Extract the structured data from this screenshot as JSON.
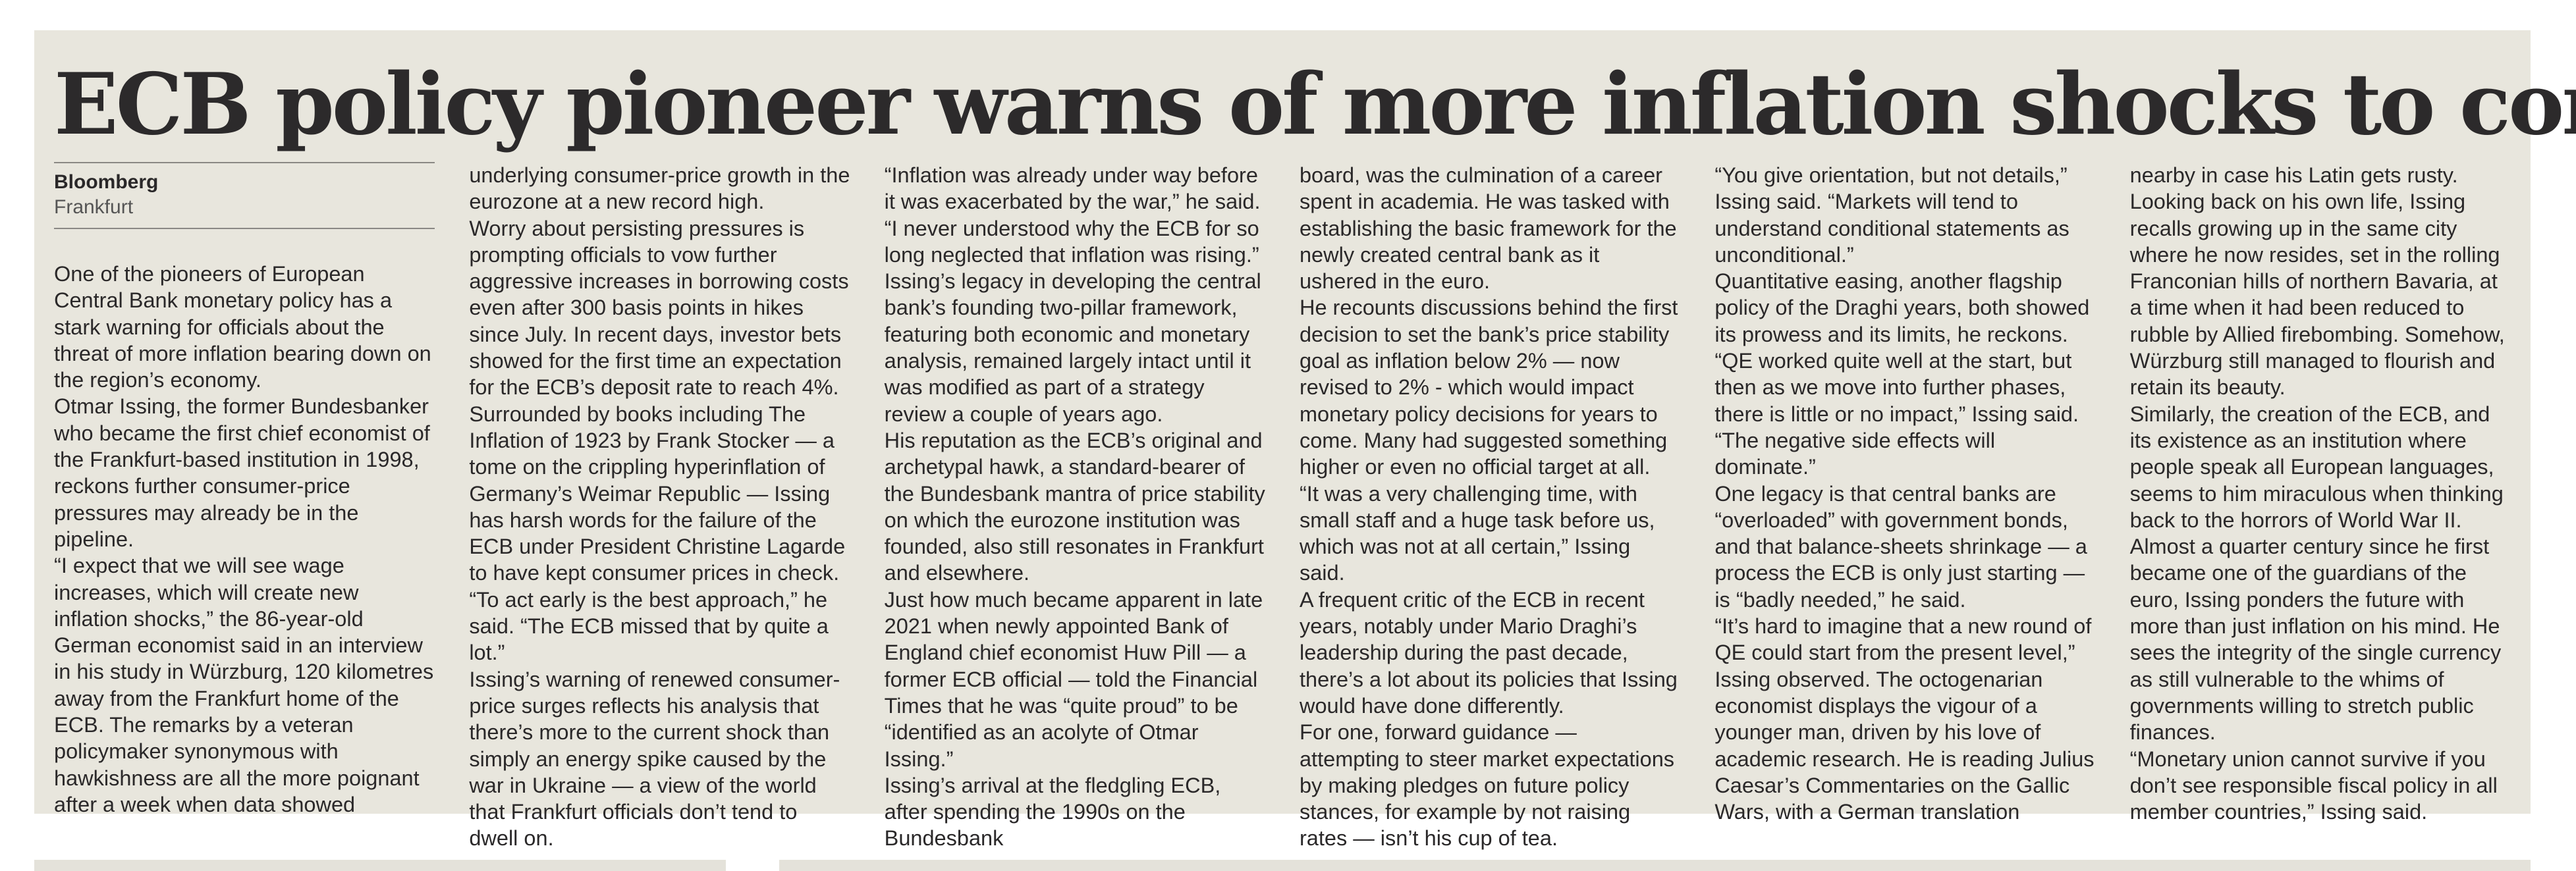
{
  "article": {
    "headline": "ECB policy pioneer warns of more inflation shocks to come",
    "source": "Bloomberg",
    "dateline": "Frankfurt",
    "columns": [
      [
        "One of the pioneers of European Central Bank monetary policy has a stark warning for officials about the threat of more inflation bearing down on the region’s economy.",
        "Otmar Issing, the former Bundesbanker who became the first chief economist of the Frankfurt-based institution in 1998, reckons further consumer-price pressures may already be in the pipeline.",
        "“I expect that we will see wage increases, which will create new inflation shocks,” the 86-year-old German economist said in an interview in his study in Würzburg, 120 kilometres away from the Frankfurt home of the ECB. The remarks by a veteran policymaker synonymous with hawkishness are all the more poignant after a week when data showed"
      ],
      [
        "underlying consumer-price growth in the eurozone at a new record high.",
        "Worry about persisting pressures is prompting officials to vow further aggressive increases in borrowing costs even after 300 basis points in hikes since July. In recent days, investor bets showed for the first time an expectation for the ECB’s deposit rate to reach 4%.",
        "Surrounded by books including The Inflation of 1923 by Frank Stocker — a tome on the crippling hyperinflation of Germany’s Weimar Republic — Issing has harsh words for the failure of the ECB under President Christine Lagarde to have kept consumer prices in check.",
        "“To act early is the best approach,” he said. “The ECB missed that by quite a lot.”",
        "Issing’s warning of renewed consumer-price surges reflects his analysis that there’s more to the current shock than simply an energy spike caused by the war in Ukraine — a view of the world that Frankfurt officials don’t tend to dwell on."
      ],
      [
        "“Inflation was already under way before it was exacerbated by the war,” he said. “I never understood why the ECB for so long neglected that inflation was rising.”",
        "Issing’s legacy in developing the central bank’s founding two-pillar framework, featuring both economic and monetary analysis, remained largely intact until it was modified as part of a strategy review a couple of years ago.",
        "His reputation as the ECB’s original and archetypal hawk, a standard-bearer of the Bundesbank mantra of price stability on which the eurozone institution was founded, also still resonates in Frankfurt and elsewhere.",
        "Just how much became apparent in late 2021 when newly appointed Bank of England chief economist Huw Pill — a former ECB official — told the Financial Times that he was “quite proud” to be “identified as an acolyte of Otmar Issing.”",
        "Issing’s arrival at the fledgling ECB, after spending the 1990s on the Bundesbank"
      ],
      [
        "board, was the culmination of a career spent in academia. He was tasked with establishing the basic framework for the newly created central bank as it ushered in the euro.",
        "He recounts discussions behind the first decision to set the bank’s price stability goal as inflation below 2% — now revised to 2% - which would impact monetary policy decisions for years to come. Many had suggested something higher or even no official target at all.",
        "“It was a very challenging time, with small staff and a huge task before us, which was not at all certain,” Issing said.",
        "A frequent critic of the ECB in recent years, notably under Mario Draghi’s leadership during the past decade, there’s a lot about its policies that Issing would have done differently.",
        "For one, forward guidance — attempting to steer market expectations by making pledges on future policy stances, for example by not raising rates — isn’t his cup of tea."
      ],
      [
        "“You give orientation, but not details,” Issing said. “Markets will tend to understand conditional statements as unconditional.”",
        "Quantitative easing, another flagship policy of the Draghi years, both showed its prowess and its limits, he reckons.",
        "“QE worked quite well at the start, but then as we move into further phases, there is little or no impact,” Issing said. “The negative side effects will dominate.”",
        "One legacy is that central banks are “overloaded” with government bonds, and that balance-sheets shrinkage — a process the ECB is only just starting — is “badly needed,” he said.",
        "“It’s hard to imagine that a new round of QE could start from the present level,” Issing observed. The octogenarian economist displays the vigour of a younger man, driven by his love of academic research. He is reading Julius Caesar’s Commentaries on the Gallic Wars, with a German translation"
      ],
      [
        "nearby in case his Latin gets rusty.",
        "Looking back on his own life, Issing recalls growing up in the same city where he now resides, set in the rolling Franconian hills of northern Bavaria, at a time when it had been reduced to rubble by Allied firebombing. Somehow, Würzburg still managed to flourish and retain its beauty.",
        "Similarly, the creation of the ECB, and its existence as an institution where people speak all European languages, seems to him miraculous when thinking back to the horrors of World War II.",
        "Almost a quarter century since he first became one of the guardians of the euro, Issing ponders the future with more than just inflation on his mind. He sees the integrity of the single currency as still vulnerable to the whims of governments willing to stretch public finances.",
        "“Monetary union cannot survive if you don’t see responsible fiscal policy in all member countries,” Issing said."
      ]
    ]
  }
}
